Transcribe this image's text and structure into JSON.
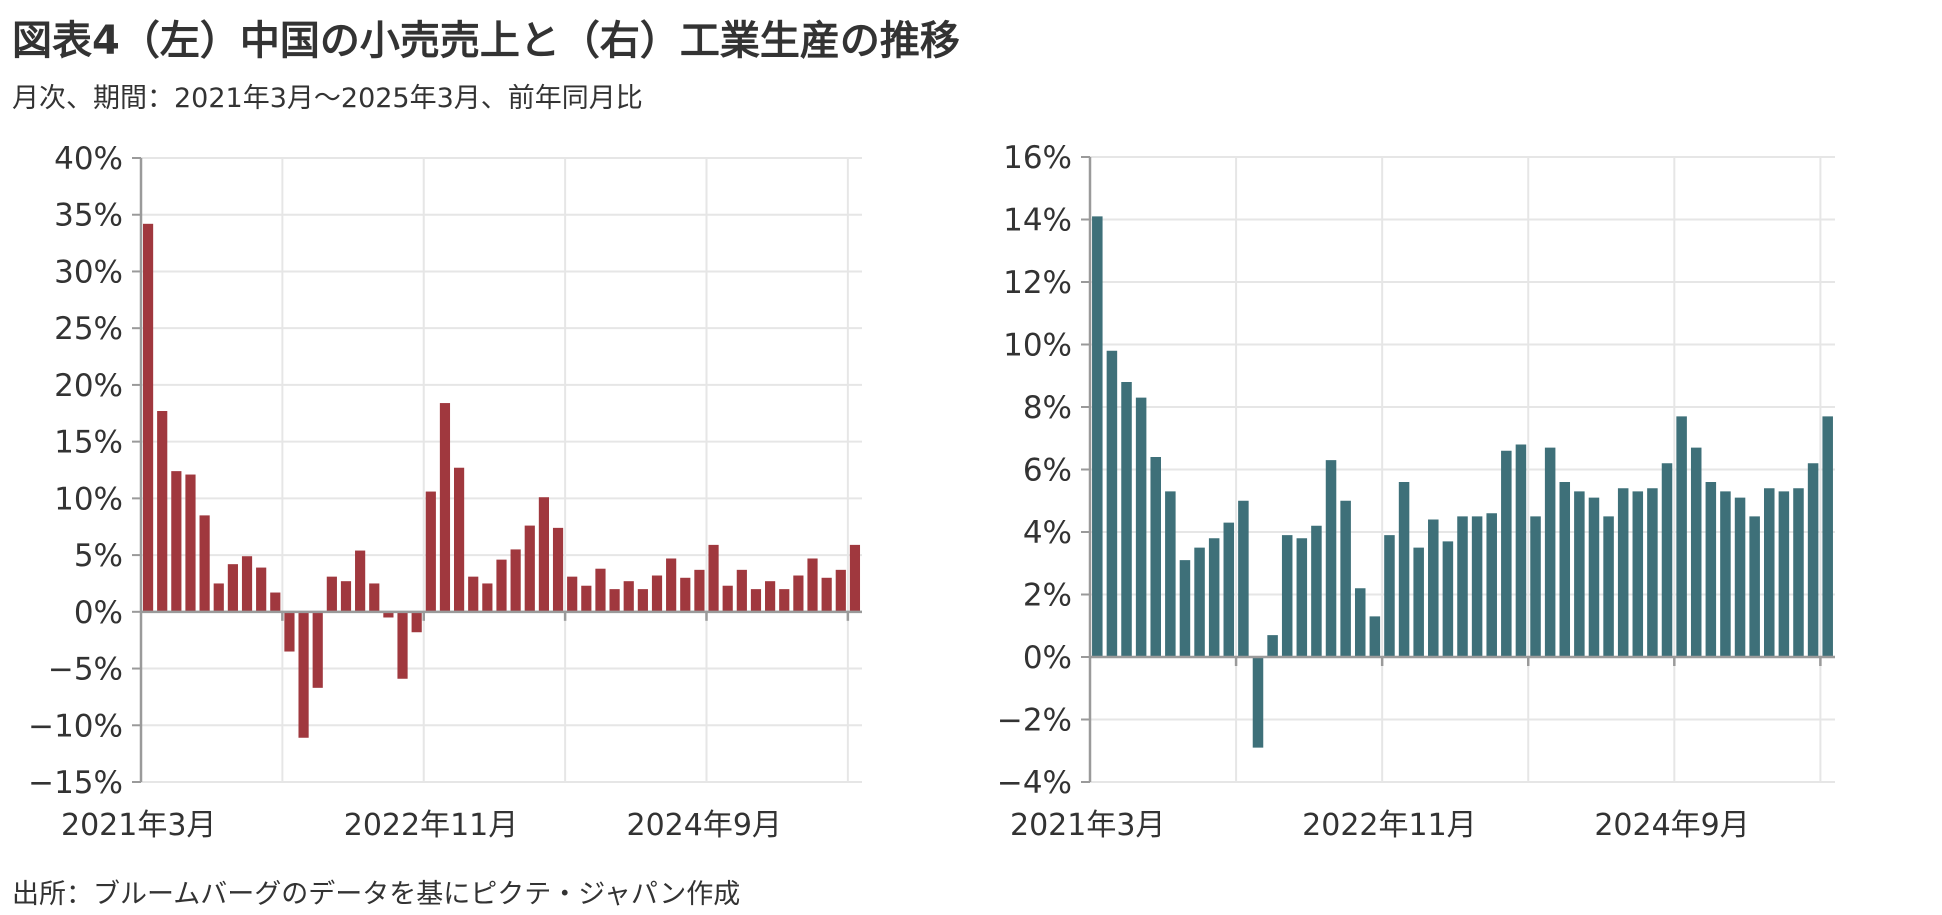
{
  "title": "図表4（左）中国の小売売上と（右）工業生産の推移",
  "subtitle": "月次、期間：2021年3月～2025年3月、前年同月比",
  "source": "出所：ブルームバーグのデータを基にピクテ・ジャパン作成",
  "colors": {
    "left_bars": "#A0383E",
    "right_bars": "#3E7079",
    "grid": "#E6E6E6",
    "axis": "#9A9A9A"
  },
  "chart_data": [
    {
      "type": "bar",
      "title": "",
      "xlabel": "",
      "ylabel": "",
      "x_tick_labels": [
        "2021年3月",
        "2022年11月",
        "2024年9月"
      ],
      "y_tick_labels": [
        "40%",
        "35%",
        "30%",
        "25%",
        "20%",
        "15%",
        "10%",
        "5%",
        "0%",
        "−5%",
        "−10%",
        "−15%"
      ],
      "ylim": [
        -15,
        40
      ],
      "grid": true,
      "series": [
        {
          "values": [
            34.2,
            17.7,
            12.4,
            12.1,
            8.5,
            2.5,
            4.2,
            4.9,
            3.9,
            1.7,
            -3.5,
            -11.1,
            -6.7,
            3.1,
            2.7,
            5.4,
            2.5,
            -0.5,
            -5.9,
            -1.8,
            10.6,
            18.4,
            12.7,
            3.1,
            2.5,
            4.6,
            5.5,
            7.6,
            10.1,
            7.4,
            3.1,
            2.3,
            3.8,
            2.0,
            2.7,
            2.0,
            3.2,
            4.7,
            3.0,
            3.7,
            5.9,
            2.3,
            3.7,
            2.0,
            2.7,
            2.0,
            3.2,
            4.7,
            3.0,
            3.7,
            5.9
          ]
        }
      ]
    },
    {
      "type": "bar",
      "title": "",
      "xlabel": "",
      "ylabel": "",
      "x_tick_labels": [
        "2021年3月",
        "2022年11月",
        "2024年9月"
      ],
      "y_tick_labels": [
        "16%",
        "14%",
        "12%",
        "10%",
        "8%",
        "6%",
        "4%",
        "2%",
        "0%",
        "−2%",
        "−4%"
      ],
      "ylim": [
        -4,
        16
      ],
      "grid": true,
      "series": [
        {
          "values": [
            14.1,
            9.8,
            8.8,
            8.3,
            6.4,
            5.3,
            3.1,
            3.5,
            3.8,
            4.3,
            5.0,
            -2.9,
            0.7,
            3.9,
            3.8,
            4.2,
            6.3,
            5.0,
            2.2,
            1.3,
            3.9,
            5.6,
            3.5,
            4.4,
            3.7,
            4.5,
            4.5,
            4.6,
            6.6,
            6.8,
            4.5,
            6.7,
            5.6,
            5.3,
            5.1,
            4.5,
            5.4,
            5.3,
            5.4,
            6.2,
            7.7,
            6.7,
            5.6,
            5.3,
            5.1,
            4.5,
            5.4,
            5.3,
            5.4,
            6.2,
            7.7
          ]
        }
      ]
    }
  ]
}
